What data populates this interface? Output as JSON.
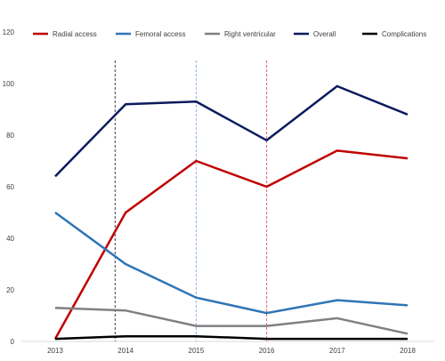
{
  "chart_data": {
    "type": "line",
    "categories": [
      "2013",
      "2014",
      "2015",
      "2016",
      "2017",
      "2018"
    ],
    "y_ticks": [
      "0",
      "20",
      "40",
      "60",
      "80",
      "100",
      "120"
    ],
    "ylim": [
      0,
      120
    ],
    "grid": false,
    "legend_position": "top",
    "series": [
      {
        "name": "Radial access",
        "color": "#C00000",
        "values": [
          1,
          50,
          70,
          60,
          74,
          71
        ]
      },
      {
        "name": "Femoral access",
        "color": "#2E75B6",
        "values": [
          50,
          30,
          17,
          11,
          16,
          14
        ]
      },
      {
        "name": "Right ventricular",
        "color": "#808080",
        "values": [
          13,
          12,
          6,
          6,
          9,
          3
        ]
      },
      {
        "name": "Overall",
        "color": "#0B1A5E",
        "values": [
          64,
          92,
          93,
          78,
          99,
          88
        ]
      },
      {
        "name": "Complications",
        "color": "#000000",
        "values": [
          1,
          2,
          2,
          1,
          1,
          1
        ]
      }
    ],
    "markers": [
      {
        "x": 2013.85,
        "color": "#404040"
      },
      {
        "x": 2015.0,
        "color": "#8EB4E3"
      },
      {
        "x": 2016.0,
        "color": "#E06666"
      }
    ]
  }
}
